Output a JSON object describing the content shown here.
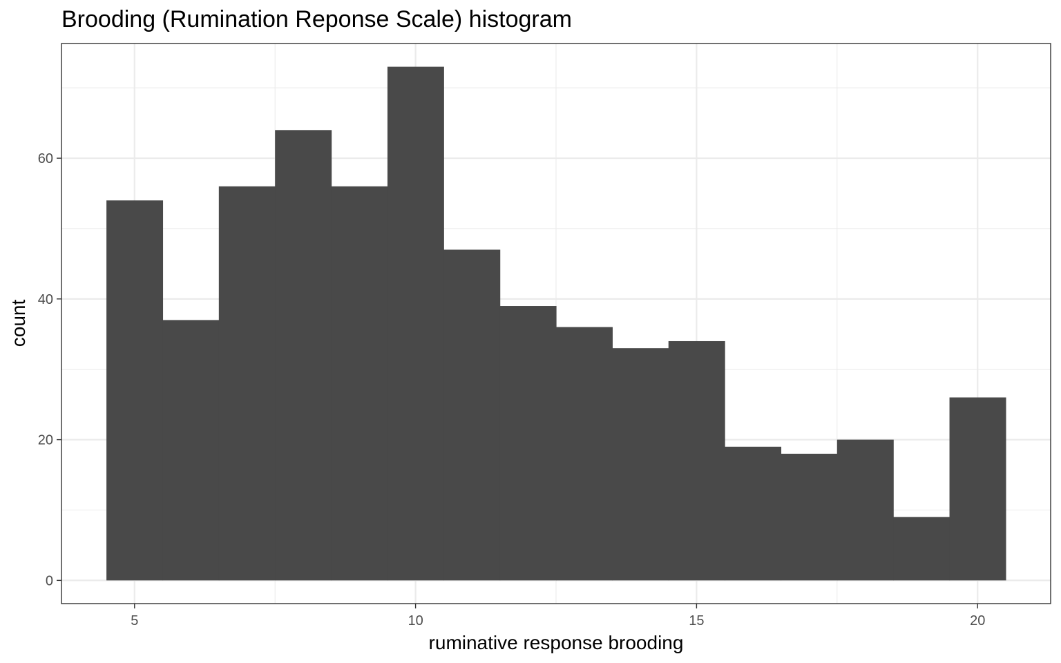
{
  "chart_data": {
    "type": "bar",
    "title": "Brooding (Rumination Reponse Scale) histogram",
    "xlabel": "ruminative response brooding",
    "ylabel": "count",
    "bin_width": 1,
    "bins": [
      {
        "x": 5,
        "count": 54
      },
      {
        "x": 6,
        "count": 37
      },
      {
        "x": 7,
        "count": 56
      },
      {
        "x": 8,
        "count": 64
      },
      {
        "x": 9,
        "count": 56
      },
      {
        "x": 10,
        "count": 73
      },
      {
        "x": 11,
        "count": 47
      },
      {
        "x": 12,
        "count": 39
      },
      {
        "x": 13,
        "count": 36
      },
      {
        "x": 14,
        "count": 33
      },
      {
        "x": 15,
        "count": 34
      },
      {
        "x": 16,
        "count": 19
      },
      {
        "x": 17,
        "count": 18
      },
      {
        "x": 18,
        "count": 20
      },
      {
        "x": 19,
        "count": 9
      },
      {
        "x": 20,
        "count": 26
      }
    ],
    "xlim": [
      3.7,
      21.3
    ],
    "ylim": [
      -3.3,
      76.3
    ],
    "xticks": [
      "5",
      "10",
      "15",
      "20"
    ],
    "xtick_values": [
      5,
      10,
      15,
      20
    ],
    "yticks": [
      "0",
      "20",
      "40",
      "60"
    ],
    "ytick_values": [
      0,
      20,
      40,
      60
    ],
    "x_minor_values": [
      7.5,
      12.5,
      17.5
    ],
    "y_minor_values": [
      10,
      30,
      50,
      70
    ],
    "grid": true,
    "bar_color": "#494949",
    "grid_color": "#ebebeb",
    "panel_border_color": "#333333"
  }
}
